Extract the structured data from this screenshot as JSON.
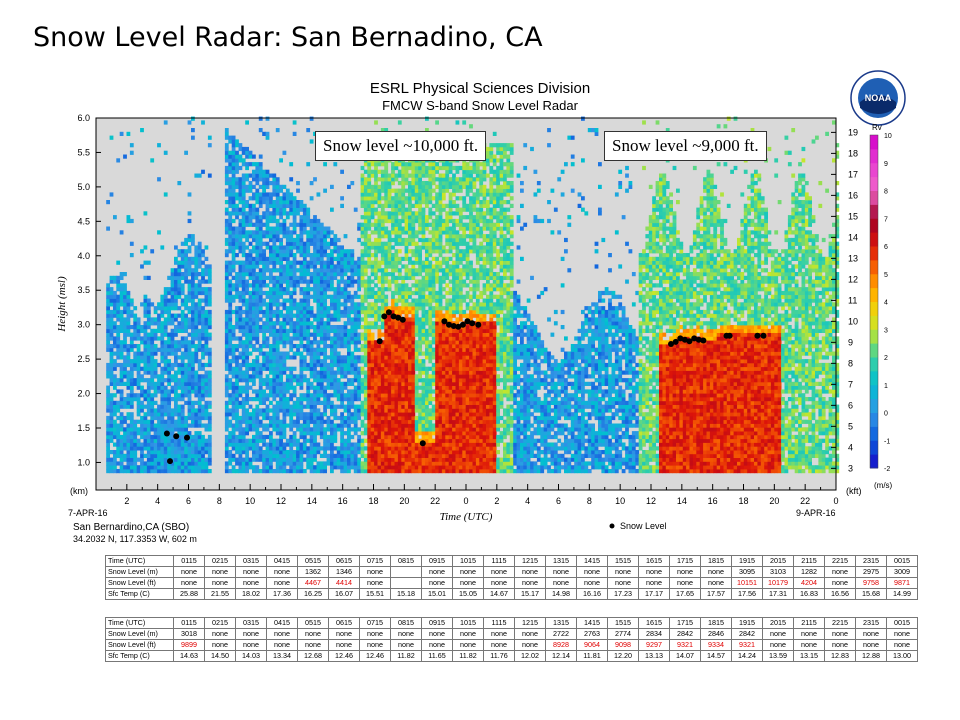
{
  "slide_title": "Snow Level Radar: San Bernadino, CA",
  "header": {
    "org": "ESRL Physical Sciences Division",
    "instrument": "FMCW S-band Snow Level Radar"
  },
  "logo_text": "NOAA",
  "annotations": [
    "Snow level ~10,000 ft.",
    "Snow level ~9,000 ft."
  ],
  "station": {
    "name": "San Bernardino,CA (SBO)",
    "coords": "34.2032 N, 117.3353 W, 602 m"
  },
  "colors": {
    "missing": "#d9d9d9",
    "snow_level_dot": "#000000",
    "value_highlight": "#e00000"
  },
  "chart_data": {
    "type": "heatmap",
    "title": "ESRL Physical Sciences Division",
    "subtitle": "FMCW S-band Snow Level Radar",
    "xlabel": "Time (UTC)",
    "ylabel": "Height (msl)",
    "y_unit": "(km)",
    "y2_unit": "(kft)",
    "colorbar_label": "Rv",
    "colorbar_unit": "(m/s)",
    "legend": "Snow Level",
    "date_labels": [
      "7-APR-16",
      "9-APR-16"
    ],
    "x_ticks": [
      "2",
      "4",
      "6",
      "8",
      "10",
      "12",
      "14",
      "16",
      "18",
      "20",
      "22",
      "0",
      "2",
      "4",
      "6",
      "8",
      "10",
      "12",
      "14",
      "16",
      "18",
      "20",
      "22",
      "0"
    ],
    "y_ticks": [
      "1.0",
      "1.5",
      "2.0",
      "2.5",
      "3.0",
      "3.5",
      "4.0",
      "4.5",
      "5.0",
      "5.5",
      "6.0"
    ],
    "y2_ticks": [
      "3",
      "4",
      "5",
      "6",
      "7",
      "8",
      "9",
      "10",
      "11",
      "12",
      "13",
      "14",
      "15",
      "16",
      "17",
      "18",
      "19"
    ],
    "colorbar_ticks": [
      "-2",
      "-1",
      "0",
      "1",
      "2",
      "3",
      "4",
      "5",
      "6",
      "7",
      "8",
      "9",
      "10"
    ],
    "ylim": [
      0.6,
      6.0
    ],
    "clim": [
      -2,
      10
    ],
    "x_range_hours": [
      0,
      48
    ],
    "missing_data_hours": [
      [
        0,
        0.5
      ],
      [
        7.3,
        8.3
      ]
    ],
    "snow_level_points": [
      [
        4.6,
        1.42
      ],
      [
        5.2,
        1.38
      ],
      [
        5.9,
        1.36
      ],
      [
        4.8,
        1.02
      ],
      [
        18.4,
        2.76
      ],
      [
        18.7,
        3.12
      ],
      [
        19.0,
        3.18
      ],
      [
        19.3,
        3.12
      ],
      [
        19.6,
        3.1
      ],
      [
        19.9,
        3.07
      ],
      [
        21.2,
        1.28
      ],
      [
        22.6,
        3.05
      ],
      [
        22.9,
        3.0
      ],
      [
        23.2,
        2.98
      ],
      [
        23.5,
        2.97
      ],
      [
        23.8,
        3.0
      ],
      [
        24.1,
        3.05
      ],
      [
        24.4,
        3.02
      ],
      [
        24.8,
        3.0
      ],
      [
        37.3,
        2.72
      ],
      [
        37.6,
        2.75
      ],
      [
        37.9,
        2.8
      ],
      [
        38.2,
        2.78
      ],
      [
        38.5,
        2.76
      ],
      [
        38.8,
        2.8
      ],
      [
        39.1,
        2.78
      ],
      [
        39.4,
        2.77
      ],
      [
        40.9,
        2.84
      ],
      [
        41.1,
        2.84
      ],
      [
        42.9,
        2.84
      ],
      [
        43.3,
        2.84
      ]
    ],
    "tables": [
      {
        "headers": [
          "Time (UTC)",
          "0115",
          "0215",
          "0315",
          "0415",
          "0515",
          "0615",
          "0715",
          "0815",
          "0915",
          "1015",
          "1115",
          "1215",
          "1315",
          "1415",
          "1515",
          "1615",
          "1715",
          "1815",
          "1915",
          "2015",
          "2115",
          "2215",
          "2315",
          "0015"
        ],
        "rows": [
          {
            "label": "Snow Level (m)",
            "values": [
              "none",
              "none",
              "none",
              "none",
              "1362",
              "1346",
              "none",
              "",
              "none",
              "none",
              "none",
              "none",
              "none",
              "none",
              "none",
              "none",
              "none",
              "none",
              "3095",
              "3103",
              "1282",
              "none",
              "2975",
              "3009"
            ]
          },
          {
            "label": "Snow Level (ft)",
            "values": [
              "none",
              "none",
              "none",
              "none",
              "4467",
              "4414",
              "none",
              "",
              "none",
              "none",
              "none",
              "none",
              "none",
              "none",
              "none",
              "none",
              "none",
              "none",
              "10151",
              "10179",
              "4204",
              "none",
              "9758",
              "9871"
            ]
          },
          {
            "label": "Sfc Temp (C)",
            "values": [
              "25.88",
              "21.55",
              "18.02",
              "17.36",
              "16.25",
              "16.07",
              "15.51",
              "15.18",
              "15.01",
              "15.05",
              "14.67",
              "15.17",
              "14.98",
              "16.16",
              "17.23",
              "17.17",
              "17.65",
              "17.57",
              "17.56",
              "17.31",
              "16.83",
              "16.56",
              "15.68",
              "14.99"
            ]
          }
        ]
      },
      {
        "headers": [
          "Time (UTC)",
          "0115",
          "0215",
          "0315",
          "0415",
          "0515",
          "0615",
          "0715",
          "0815",
          "0915",
          "1015",
          "1115",
          "1215",
          "1315",
          "1415",
          "1515",
          "1615",
          "1715",
          "1815",
          "1915",
          "2015",
          "2115",
          "2215",
          "2315",
          "0015"
        ],
        "rows": [
          {
            "label": "Snow Level (m)",
            "values": [
              "3018",
              "none",
              "none",
              "none",
              "none",
              "none",
              "none",
              "none",
              "none",
              "none",
              "none",
              "none",
              "2722",
              "2763",
              "2774",
              "2834",
              "2842",
              "2846",
              "2842",
              "none",
              "none",
              "none",
              "none",
              "none"
            ]
          },
          {
            "label": "Snow Level (ft)",
            "values": [
              "9899",
              "none",
              "none",
              "none",
              "none",
              "none",
              "none",
              "none",
              "none",
              "none",
              "none",
              "none",
              "8928",
              "9064",
              "9098",
              "9297",
              "9321",
              "9334",
              "9321",
              "none",
              "none",
              "none",
              "none",
              "none"
            ]
          },
          {
            "label": "Sfc Temp (C)",
            "values": [
              "14.63",
              "14.50",
              "14.03",
              "13.34",
              "12.68",
              "12.46",
              "12.46",
              "11.82",
              "11.65",
              "11.82",
              "11.76",
              "12.02",
              "12.14",
              "11.81",
              "12.20",
              "13.13",
              "14.07",
              "14.57",
              "14.24",
              "13.59",
              "13.15",
              "12.83",
              "12.88",
              "13.00"
            ]
          }
        ]
      }
    ]
  }
}
